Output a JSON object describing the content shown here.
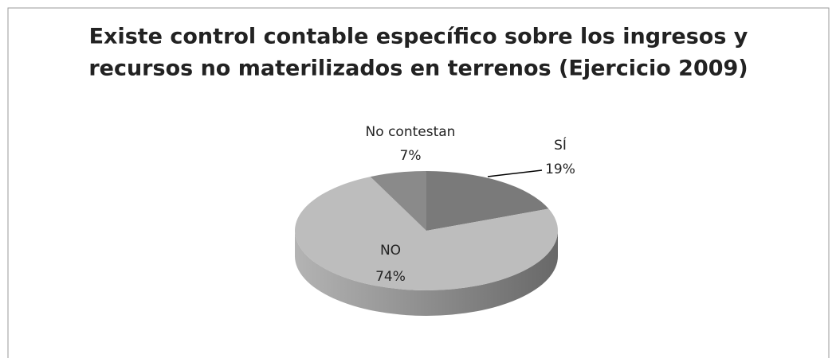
{
  "chart_data": {
    "type": "pie3d",
    "title": [
      "Existe control contable específico sobre los ingresos y",
      "recursos no materilizados en terrenos (Ejercicio 2009)"
    ],
    "categories": [
      "SÍ",
      "NO",
      "No contestan"
    ],
    "values": [
      19,
      74,
      7
    ],
    "value_labels": [
      "19%",
      "74%",
      "7%"
    ],
    "colors": [
      "#7a7a7a",
      "#bdbdbd",
      "#8a8a8a"
    ]
  }
}
